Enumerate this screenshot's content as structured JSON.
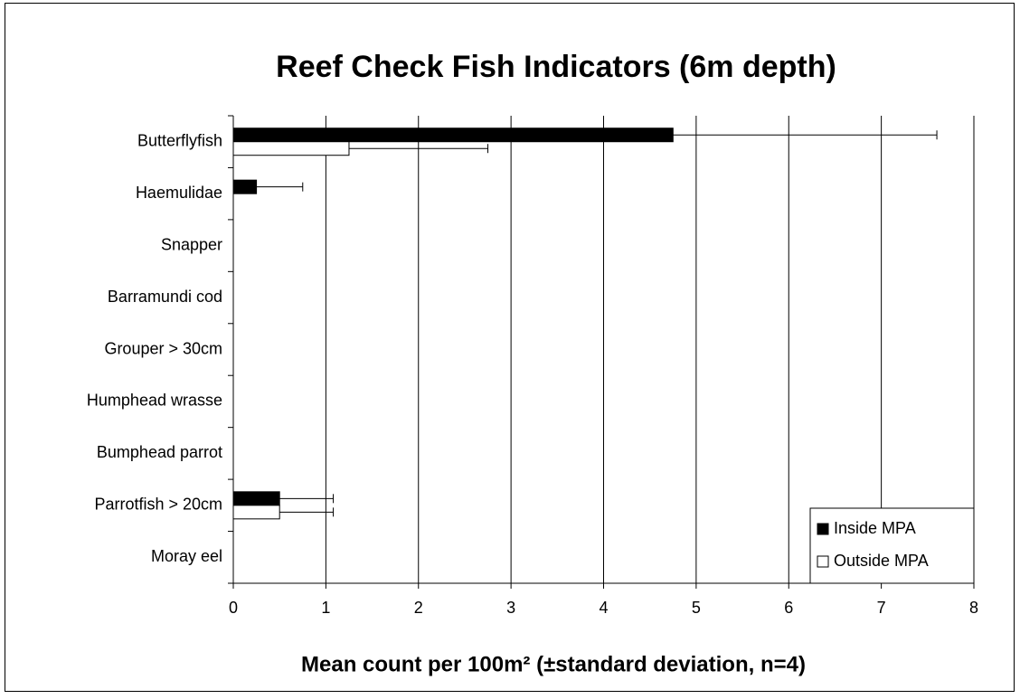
{
  "chart_data": {
    "type": "hbar",
    "title": "Reef Check Fish Indicators (6m depth)",
    "x_label": "Mean count per 100m² (±standard deviation, n=4)",
    "categories": [
      "Butterflyfish",
      "Haemulidae",
      "Snapper",
      "Barramundi cod",
      "Grouper > 30cm",
      "Humphead wrasse",
      "Bumphead parrot",
      "Parrotfish > 20cm",
      "Moray eel"
    ],
    "series": [
      {
        "name": "Inside MPA",
        "color": "#000000",
        "values": [
          4.75,
          0.25,
          0,
          0,
          0,
          0,
          0,
          0.5,
          0
        ],
        "errors": [
          2.85,
          0.5,
          0,
          0,
          0,
          0,
          0,
          0.58,
          0
        ]
      },
      {
        "name": "Outside MPA",
        "color": "#ffffff",
        "values": [
          1.25,
          0,
          0,
          0,
          0,
          0,
          0,
          0.5,
          0
        ],
        "errors": [
          1.5,
          0,
          0,
          0,
          0,
          0,
          0,
          0.58,
          0
        ]
      }
    ],
    "xlim": [
      0,
      8
    ],
    "xticks": [
      0,
      1,
      2,
      3,
      4,
      5,
      6,
      7,
      8
    ],
    "grid": true,
    "legend": "bottom-right"
  }
}
